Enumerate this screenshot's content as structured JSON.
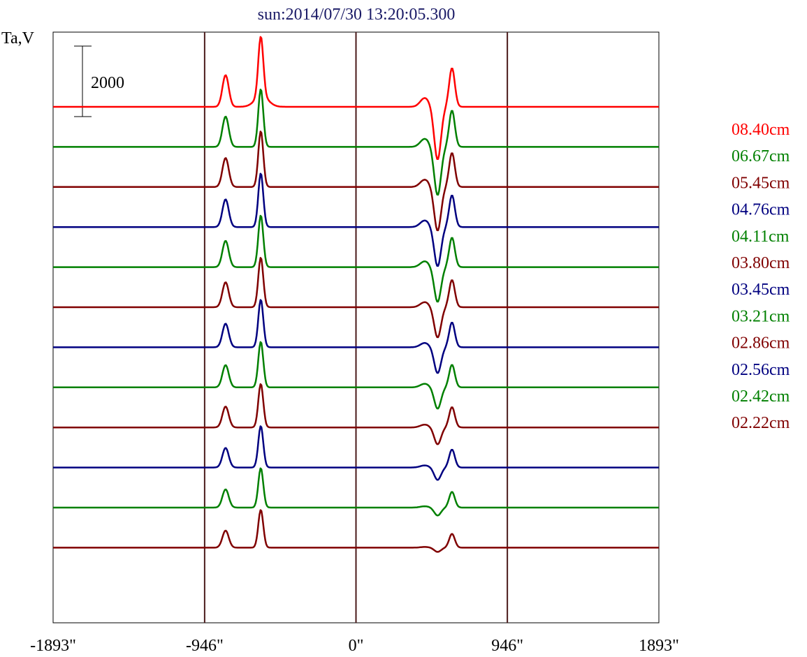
{
  "chart_data": {
    "type": "line",
    "title": "sun:2014/07/30 13:20:05.300",
    "ylabel": "Ta,V",
    "xlabel": "",
    "scale_bar_label": "2000",
    "x_ticks": [
      {
        "value": -1893,
        "label": "-1893\""
      },
      {
        "value": -946,
        "label": "-946\""
      },
      {
        "value": 0,
        "label": "0\""
      },
      {
        "value": 946,
        "label": "946\""
      },
      {
        "value": 1893,
        "label": "1893\""
      }
    ],
    "vertical_lines": [
      -946,
      0,
      946
    ],
    "xlim": [
      -1893,
      1893
    ],
    "series": [
      {
        "name": "08.40cm",
        "color": "#ff0000"
      },
      {
        "name": "06.67cm",
        "color": "#008000"
      },
      {
        "name": "05.45cm",
        "color": "#800000"
      },
      {
        "name": "04.76cm",
        "color": "#000080"
      },
      {
        "name": "04.11cm",
        "color": "#008000"
      },
      {
        "name": "03.80cm",
        "color": "#800000"
      },
      {
        "name": "03.45cm",
        "color": "#000080"
      },
      {
        "name": "03.21cm",
        "color": "#008000"
      },
      {
        "name": "02.86cm",
        "color": "#800000"
      },
      {
        "name": "02.56cm",
        "color": "#000080"
      },
      {
        "name": "02.42cm",
        "color": "#008000"
      },
      {
        "name": "02.22cm",
        "color": "#800000"
      }
    ]
  }
}
